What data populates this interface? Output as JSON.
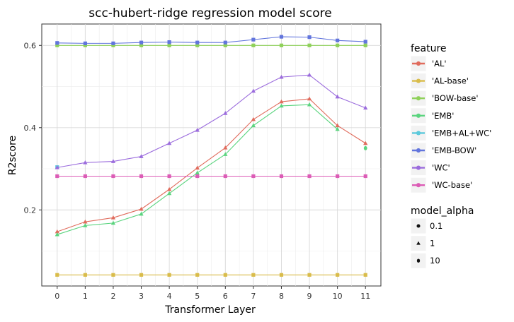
{
  "chart_data": {
    "type": "line",
    "title": "scc-hubert-ridge regression model score",
    "xlabel": "Transformer Layer",
    "ylabel": "R2score",
    "x": [
      0,
      1,
      2,
      3,
      4,
      5,
      6,
      7,
      8,
      9,
      10,
      11
    ],
    "xticks": [
      "0",
      "1",
      "2",
      "3",
      "4",
      "5",
      "6",
      "7",
      "8",
      "9",
      "10",
      "11"
    ],
    "yticks": [
      0.2,
      0.4,
      0.6
    ],
    "ytick_labels": [
      "0.2",
      "0.4",
      "0.6"
    ],
    "xlim": [
      -0.55,
      11.55
    ],
    "ylim": [
      0.015,
      0.652
    ],
    "grid": true,
    "legend_placement": "right",
    "feature_legend_title": "feature",
    "alpha_legend_title": "model_alpha",
    "alpha_legend": [
      {
        "label": "0.1",
        "shape": "circle"
      },
      {
        "label": "1",
        "shape": "triangle"
      },
      {
        "label": "10",
        "shape": "ellipse"
      }
    ],
    "series": [
      {
        "name": "'AL'",
        "color": "#E06B5C",
        "shape": "triangle",
        "values": [
          0.147,
          0.171,
          0.181,
          0.202,
          0.25,
          0.302,
          0.351,
          0.42,
          0.463,
          0.47,
          0.405,
          0.362
        ]
      },
      {
        "name": "'AL-base'",
        "color": "#D9BC4A",
        "shape": "square",
        "values": [
          0.042,
          0.042,
          0.042,
          0.042,
          0.042,
          0.042,
          0.042,
          0.042,
          0.042,
          0.042,
          0.042,
          0.042
        ]
      },
      {
        "name": "'BOW-base'",
        "color": "#8FD15A",
        "shape": "square",
        "values": [
          0.6,
          0.6,
          0.6,
          0.6,
          0.6,
          0.6,
          0.6,
          0.6,
          0.6,
          0.6,
          0.6,
          0.6
        ]
      },
      {
        "name": "'EMB'",
        "color": "#5AD47E",
        "shape": "triangle",
        "values": [
          0.14,
          0.162,
          0.168,
          0.19,
          0.24,
          0.29,
          0.335,
          0.405,
          0.453,
          0.456,
          0.396,
          null
        ],
        "extra_points": [
          {
            "x": 11,
            "y": 0.35,
            "shape": "ellipse"
          }
        ]
      },
      {
        "name": "'EMB+AL+WC'",
        "color": "#5BC9DB",
        "shape": "square",
        "values": [
          0.304,
          null,
          null,
          null,
          null,
          null,
          null,
          null,
          null,
          null,
          null,
          null
        ]
      },
      {
        "name": "'EMB-BOW'",
        "color": "#6275DD",
        "shape": "square",
        "values": [
          0.606,
          0.605,
          0.605,
          0.607,
          0.608,
          0.607,
          0.607,
          0.614,
          0.621,
          0.62,
          0.612,
          0.609
        ]
      },
      {
        "name": "'WC'",
        "color": "#9B6CDD",
        "shape": "triangle",
        "values": [
          0.303,
          0.315,
          0.318,
          0.33,
          0.362,
          0.394,
          0.435,
          0.489,
          0.523,
          0.528,
          0.475,
          0.448
        ]
      },
      {
        "name": "'WC-base'",
        "color": "#DC5CB6",
        "shape": "square",
        "values": [
          0.282,
          0.282,
          0.282,
          0.282,
          0.282,
          0.282,
          0.282,
          0.282,
          0.282,
          0.282,
          0.282,
          0.282
        ]
      }
    ]
  }
}
